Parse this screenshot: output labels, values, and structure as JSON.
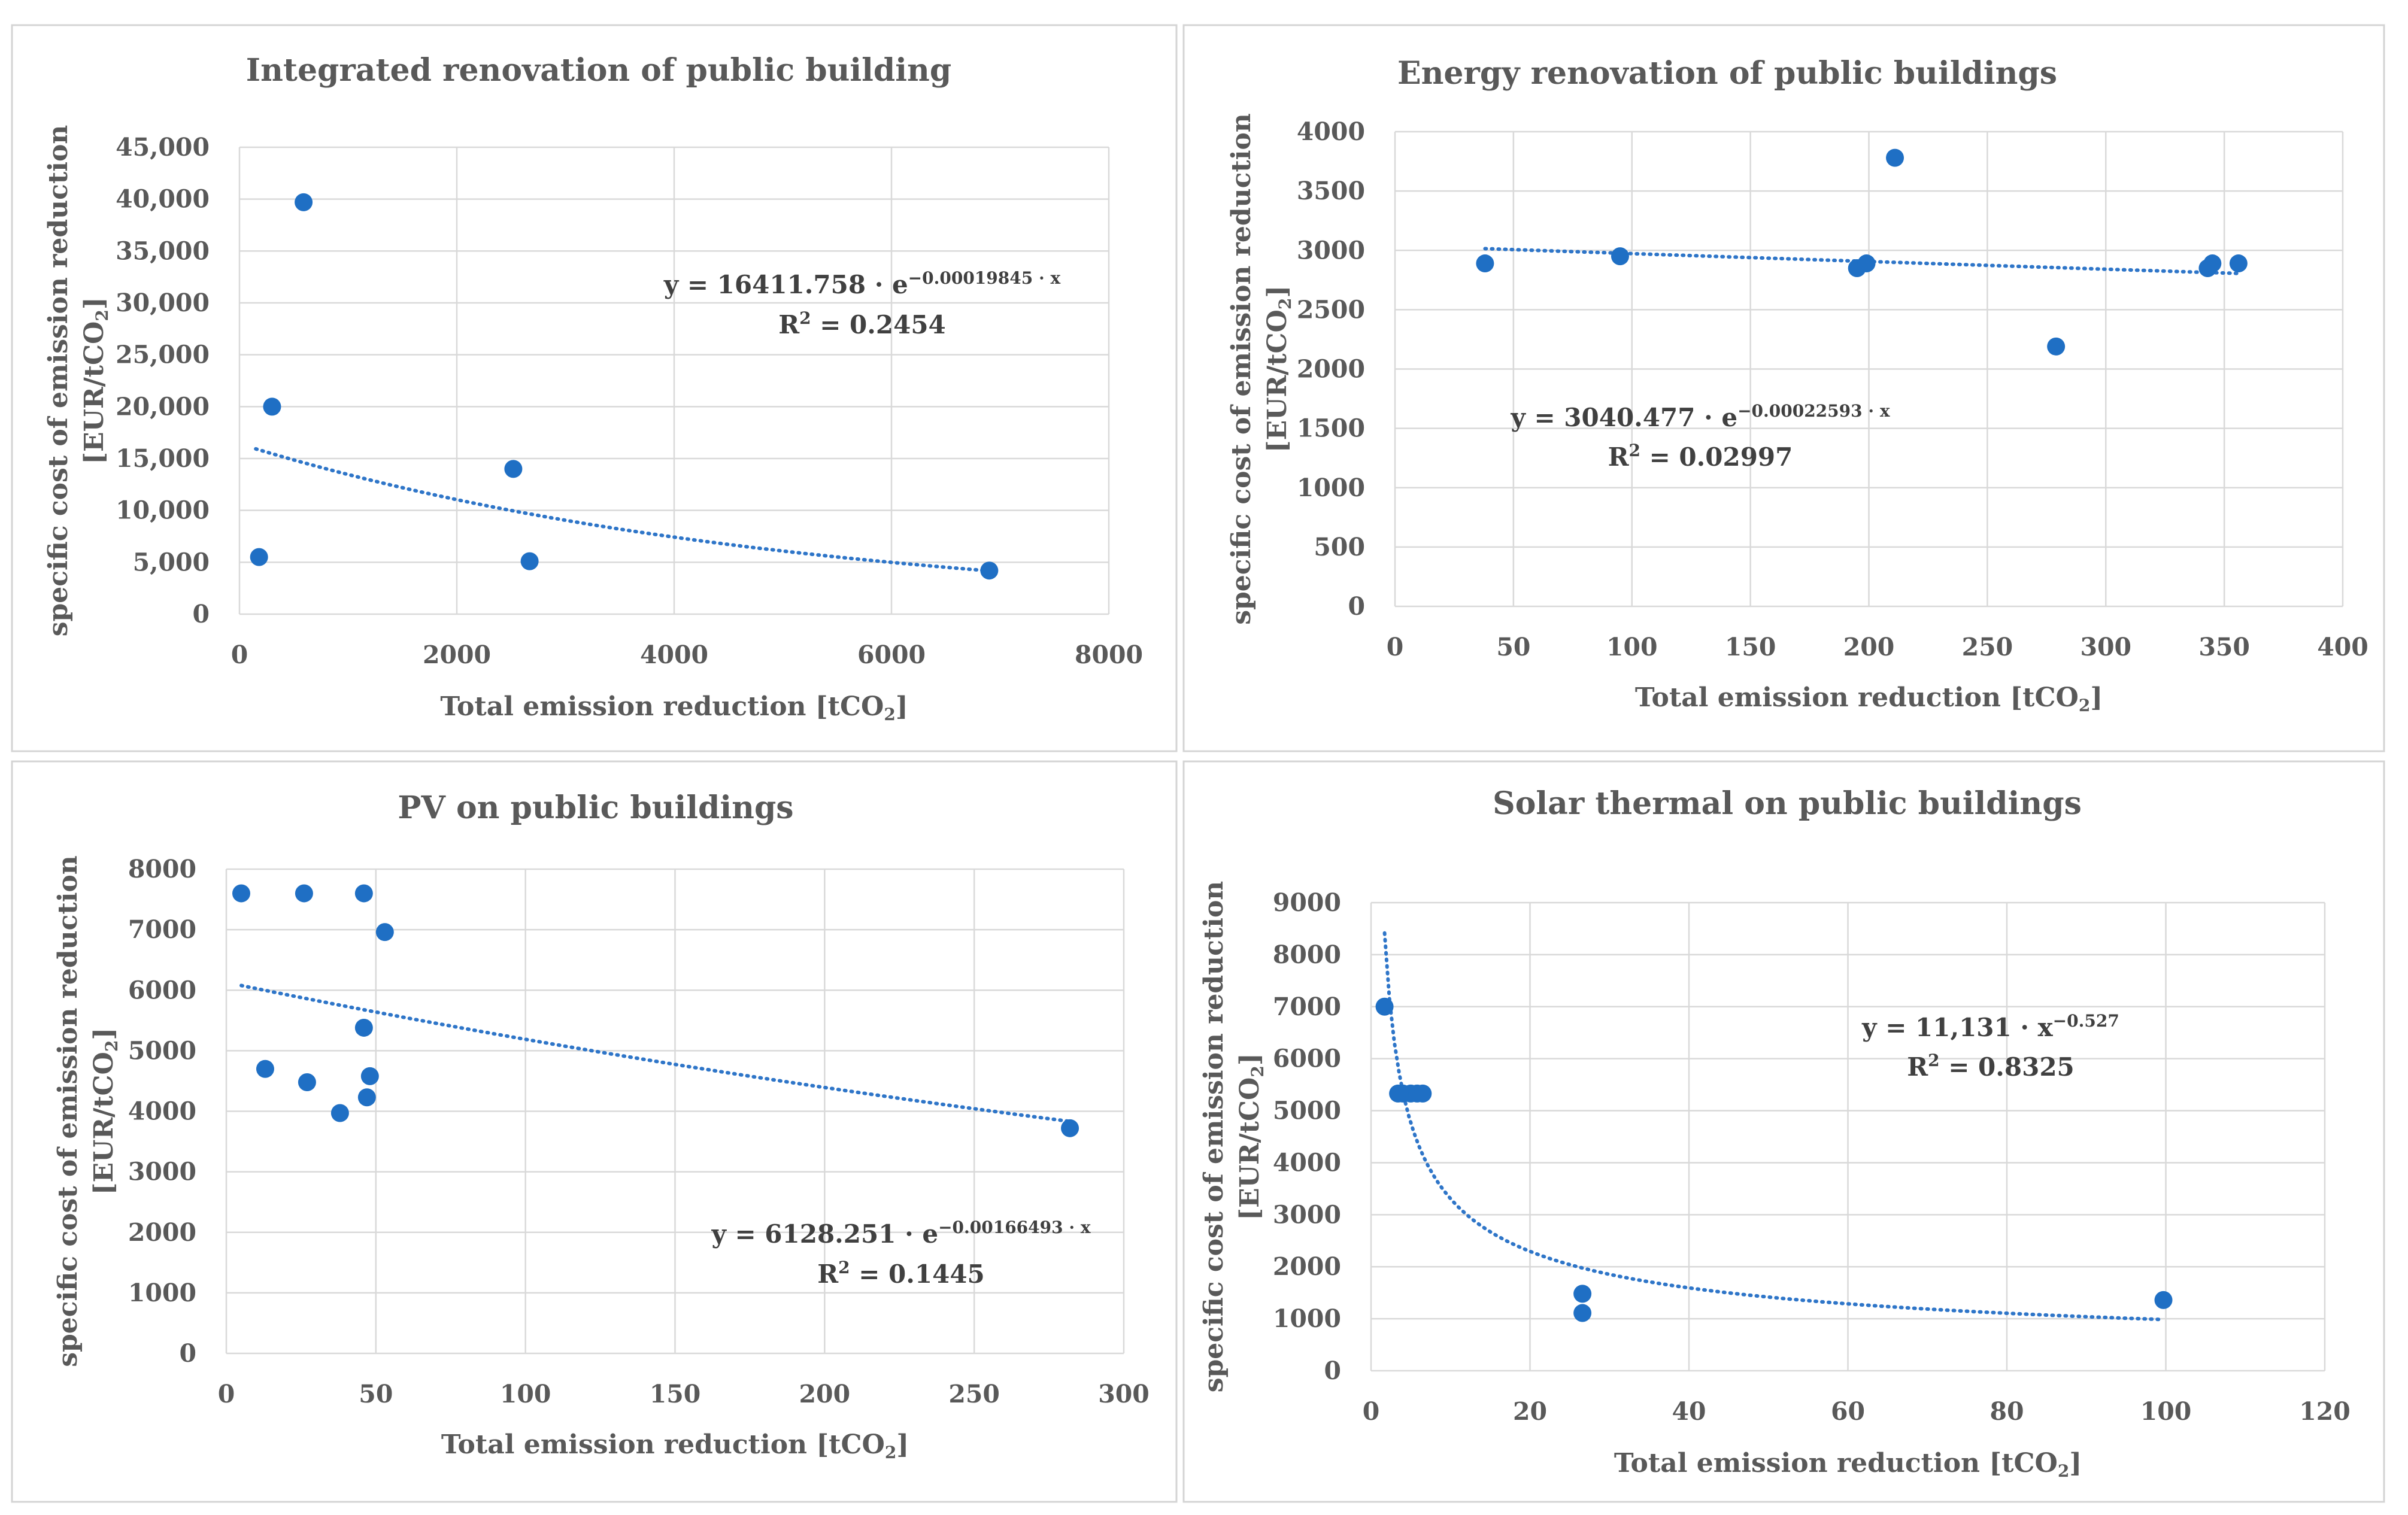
{
  "chart_data": [
    {
      "type": "scatter",
      "title": "Integrated renovation of public building",
      "xlabel": "Total emission reduction [tCO",
      "xlabel_sub": "2",
      "xlabel_end": "]",
      "ylabel_line1": "specific cost of emission reduction",
      "ylabel_line2": "[EUR/tCO",
      "ylabel_sub": "2",
      "ylabel_end": "]",
      "xlim": [
        0,
        8000
      ],
      "ylim": [
        0,
        45000
      ],
      "x_ticks": [
        0,
        2000,
        4000,
        6000,
        8000
      ],
      "y_ticks": [
        0,
        5000,
        10000,
        15000,
        20000,
        25000,
        30000,
        35000,
        40000,
        45000
      ],
      "x_tick_labels": [
        "0",
        "2000",
        "4000",
        "6000",
        "8000"
      ],
      "y_tick_labels": [
        "0",
        "5,000",
        "10,000",
        "15,000",
        "20,000",
        "25,000",
        "30,000",
        "35,000",
        "40,000",
        "45,000"
      ],
      "points": [
        {
          "x": 180,
          "y": 5500
        },
        {
          "x": 300,
          "y": 20000
        },
        {
          "x": 590,
          "y": 39700
        },
        {
          "x": 2520,
          "y": 14000
        },
        {
          "x": 2670,
          "y": 5100
        },
        {
          "x": 6900,
          "y": 4200
        }
      ],
      "trendline": {
        "type": "exponential",
        "a": 16411.758,
        "b": -0.00019845,
        "x_range": [
          150,
          6950
        ]
      },
      "equation": {
        "prefix": "y = 16411.758 · e",
        "sup": "−0.00019845 · x",
        "r2_prefix": "R",
        "r2_sup": "2",
        "r2_value": " = 0.2454"
      }
    },
    {
      "type": "scatter",
      "title": "Energy renovation of public buildings",
      "xlabel": "Total emission reduction [tCO",
      "xlabel_sub": "2",
      "xlabel_end": "]",
      "ylabel_line1": "specific cost of emission reduction",
      "ylabel_line2": "[EUR/tCO",
      "ylabel_sub": "2",
      "ylabel_end": "]",
      "xlim": [
        0,
        400
      ],
      "ylim": [
        0,
        4000
      ],
      "x_ticks": [
        0,
        50,
        100,
        150,
        200,
        250,
        300,
        350,
        400
      ],
      "y_ticks": [
        0,
        500,
        1000,
        1500,
        2000,
        2500,
        3000,
        3500,
        4000
      ],
      "x_tick_labels": [
        "0",
        "50",
        "100",
        "150",
        "200",
        "250",
        "300",
        "350",
        "400"
      ],
      "y_tick_labels": [
        "0",
        "500",
        "1000",
        "1500",
        "2000",
        "2500",
        "3000",
        "3500",
        "4000"
      ],
      "points": [
        {
          "x": 38,
          "y": 2890
        },
        {
          "x": 95,
          "y": 2950
        },
        {
          "x": 195,
          "y": 2850
        },
        {
          "x": 199,
          "y": 2890
        },
        {
          "x": 211,
          "y": 3780
        },
        {
          "x": 279,
          "y": 2190
        },
        {
          "x": 343,
          "y": 2850
        },
        {
          "x": 345,
          "y": 2890
        },
        {
          "x": 356,
          "y": 2890
        }
      ],
      "trendline": {
        "type": "exponential",
        "a": 3040.477,
        "b": -0.00022593,
        "x_range": [
          38,
          356
        ]
      },
      "equation": {
        "prefix": "y = 3040.477 · e",
        "sup": "−0.00022593 · x",
        "r2_prefix": "R",
        "r2_sup": "2",
        "r2_value": " = 0.02997"
      }
    },
    {
      "type": "scatter",
      "title": "PV on public buildings",
      "xlabel": "Total emission reduction [tCO",
      "xlabel_sub": "2",
      "xlabel_end": "]",
      "ylabel_line1": "specific cost of emission reduction",
      "ylabel_line2": "[EUR/tCO",
      "ylabel_sub": "2",
      "ylabel_end": "]",
      "xlim": [
        0,
        300
      ],
      "ylim": [
        0,
        8000
      ],
      "x_ticks": [
        0,
        50,
        100,
        150,
        200,
        250,
        300
      ],
      "y_ticks": [
        0,
        1000,
        2000,
        3000,
        4000,
        5000,
        6000,
        7000,
        8000
      ],
      "x_tick_labels": [
        "0",
        "50",
        "100",
        "150",
        "200",
        "250",
        "300"
      ],
      "y_tick_labels": [
        "0",
        "1000",
        "2000",
        "3000",
        "4000",
        "5000",
        "6000",
        "7000",
        "8000"
      ],
      "points": [
        {
          "x": 5,
          "y": 7600
        },
        {
          "x": 13,
          "y": 4700
        },
        {
          "x": 26,
          "y": 7600
        },
        {
          "x": 27,
          "y": 4480
        },
        {
          "x": 38,
          "y": 3970
        },
        {
          "x": 46,
          "y": 7600
        },
        {
          "x": 46,
          "y": 5380
        },
        {
          "x": 47,
          "y": 4230
        },
        {
          "x": 48,
          "y": 4580
        },
        {
          "x": 53,
          "y": 6960
        },
        {
          "x": 282,
          "y": 3720
        }
      ],
      "trendline": {
        "type": "exponential",
        "a": 6128.251,
        "b": -0.00166493,
        "x_range": [
          5,
          282
        ]
      },
      "equation": {
        "prefix": "y = 6128.251 · e",
        "sup": "−0.00166493 · x",
        "r2_prefix": "R",
        "r2_sup": "2",
        "r2_value": " = 0.1445"
      }
    },
    {
      "type": "scatter",
      "title": "Solar thermal on public buildings",
      "xlabel": "Total emission reduction [tCO",
      "xlabel_sub": "2",
      "xlabel_end": "]",
      "ylabel_line1": "specific cost of emission reduction",
      "ylabel_line2": "[EUR/tCO",
      "ylabel_sub": "2",
      "ylabel_end": "]",
      "xlim": [
        0,
        120
      ],
      "ylim": [
        0,
        9000
      ],
      "x_ticks": [
        0,
        20,
        40,
        60,
        80,
        100,
        120
      ],
      "y_ticks": [
        0,
        1000,
        2000,
        3000,
        4000,
        5000,
        6000,
        7000,
        8000,
        9000
      ],
      "x_tick_labels": [
        "0",
        "20",
        "40",
        "60",
        "80",
        "100",
        "120"
      ],
      "y_tick_labels": [
        "0",
        "1000",
        "2000",
        "3000",
        "4000",
        "5000",
        "6000",
        "7000",
        "8000",
        "9000"
      ],
      "points": [
        {
          "x": 1.7,
          "y": 7000
        },
        {
          "x": 3.4,
          "y": 5330
        },
        {
          "x": 4.0,
          "y": 5330
        },
        {
          "x": 5.0,
          "y": 5330
        },
        {
          "x": 5.8,
          "y": 5330
        },
        {
          "x": 6.5,
          "y": 5330
        },
        {
          "x": 26.6,
          "y": 1480
        },
        {
          "x": 26.6,
          "y": 1110
        },
        {
          "x": 99.7,
          "y": 1360
        }
      ],
      "trendline": {
        "type": "power",
        "a": 11131,
        "b": -0.527,
        "x_range": [
          1.7,
          99.7
        ]
      },
      "equation": {
        "prefix": "y = 11,131 · x",
        "sup": "−0.527",
        "r2_prefix": "R",
        "r2_sup": "2",
        "r2_value": " = 0.8325"
      }
    }
  ]
}
